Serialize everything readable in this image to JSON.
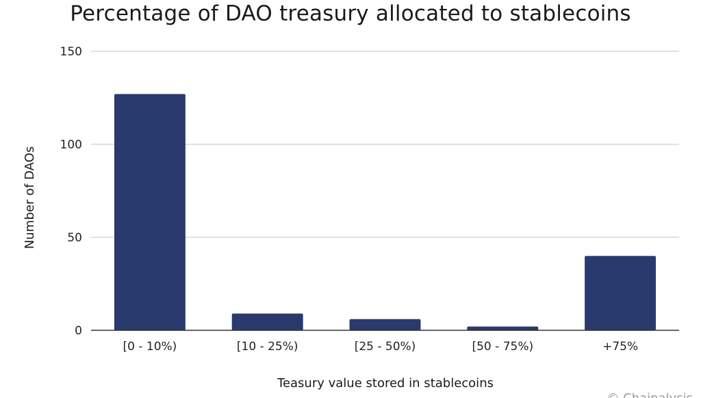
{
  "chart_data": {
    "type": "bar",
    "title": "Percentage of DAO treasury allocated to stablecoins",
    "xlabel": "Teasury value stored in stablecoins",
    "ylabel": "Number of DAOs",
    "categories": [
      "[0 - 10%)",
      "[10 - 25%)",
      "[25 - 50%)",
      "[50 - 75%)",
      "+75%"
    ],
    "values": [
      127,
      9,
      6,
      2,
      40
    ],
    "ylim": [
      0,
      150
    ],
    "yticks": [
      0,
      50,
      100,
      150
    ],
    "grid": true,
    "bar_color": "#293a6e"
  },
  "credit": "© Chainalysis"
}
